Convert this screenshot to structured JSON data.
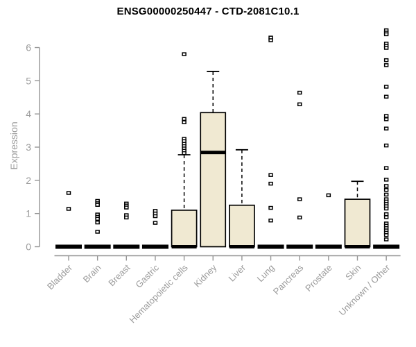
{
  "chart_data": {
    "type": "boxplot",
    "title": "ENSG00000250447 - CTD-2081C10.1",
    "ylabel": "Expression",
    "xlabel": "",
    "ylim": [
      0,
      6.6
    ],
    "yticks": [
      0,
      1,
      2,
      3,
      4,
      5,
      6
    ],
    "grid": false,
    "legend": "none",
    "colors": {
      "box_fill": "#f0e9d2",
      "box_stroke": "#000000",
      "median": "#000000",
      "outlier": "#000000",
      "axis": "#959595",
      "tick_label": "#9b9b9b",
      "title": "#000000",
      "background": "#ffffff"
    },
    "categories": [
      "Bladder",
      "Brain",
      "Breast",
      "Gastric",
      "Hematopoietic cells",
      "Kidney",
      "Liver",
      "Lung",
      "Pancreas",
      "Prostate",
      "Skin",
      "Unknown / Other"
    ],
    "boxes": [
      {
        "category": "Bladder",
        "q1": 0,
        "median": 0,
        "q3": 0,
        "whisker_low": 0,
        "whisker_high": 0,
        "outliers": [
          1.62,
          1.14
        ]
      },
      {
        "category": "Brain",
        "q1": 0,
        "median": 0,
        "q3": 0,
        "whisker_low": 0,
        "whisker_high": 0,
        "outliers": [
          1.38,
          1.31,
          1.26,
          0.97,
          0.9,
          0.84,
          0.73,
          0.45
        ]
      },
      {
        "category": "Breast",
        "q1": 0,
        "median": 0,
        "q3": 0,
        "whisker_low": 0,
        "whisker_high": 0,
        "outliers": [
          1.3,
          1.24,
          1.18,
          0.95,
          0.88
        ]
      },
      {
        "category": "Gastric",
        "q1": 0,
        "median": 0,
        "q3": 0,
        "whisker_low": 0,
        "whisker_high": 0,
        "outliers": [
          1.08,
          1.0,
          0.92,
          0.72
        ]
      },
      {
        "category": "Hematopoietic cells",
        "q1": 0,
        "median": 0,
        "q3": 1.1,
        "whisker_low": 0,
        "whisker_high": 2.77,
        "outliers": [
          5.8,
          3.85,
          3.75,
          3.25,
          3.18,
          3.1,
          3.03,
          2.96,
          2.89,
          2.82
        ]
      },
      {
        "category": "Kidney",
        "q1": 0,
        "median": 2.84,
        "q3": 4.04,
        "whisker_low": 0,
        "whisker_high": 5.28,
        "outliers": []
      },
      {
        "category": "Liver",
        "q1": 0,
        "median": 0,
        "q3": 1.25,
        "whisker_low": 0,
        "whisker_high": 2.92,
        "outliers": []
      },
      {
        "category": "Lung",
        "q1": 0,
        "median": 0,
        "q3": 0,
        "whisker_low": 0,
        "whisker_high": 0,
        "outliers": [
          6.3,
          6.22,
          2.16,
          1.9,
          1.17,
          0.79
        ]
      },
      {
        "category": "Pancreas",
        "q1": 0,
        "median": 0,
        "q3": 0,
        "whisker_low": 0,
        "whisker_high": 0,
        "outliers": [
          4.64,
          4.29,
          1.43,
          0.88
        ]
      },
      {
        "category": "Prostate",
        "q1": 0,
        "median": 0,
        "q3": 0,
        "whisker_low": 0,
        "whisker_high": 0,
        "outliers": [
          1.55
        ]
      },
      {
        "category": "Skin",
        "q1": 0,
        "median": 0,
        "q3": 1.43,
        "whisker_low": 0,
        "whisker_high": 1.97,
        "outliers": []
      },
      {
        "category": "Unknown / Other",
        "q1": 0,
        "median": 0,
        "q3": 0,
        "whisker_low": 0,
        "whisker_high": 0,
        "outliers": [
          6.52,
          6.45,
          6.4,
          6.12,
          6.05,
          5.99,
          5.62,
          5.47,
          4.82,
          4.52,
          3.94,
          3.84,
          3.56,
          3.05,
          2.37,
          2.02,
          1.83,
          1.71,
          1.57,
          1.43,
          1.36,
          1.29,
          1.22,
          1.15,
          0.98,
          0.89,
          0.7,
          0.63,
          0.56,
          0.49,
          0.42,
          0.35,
          0.22
        ]
      }
    ]
  }
}
